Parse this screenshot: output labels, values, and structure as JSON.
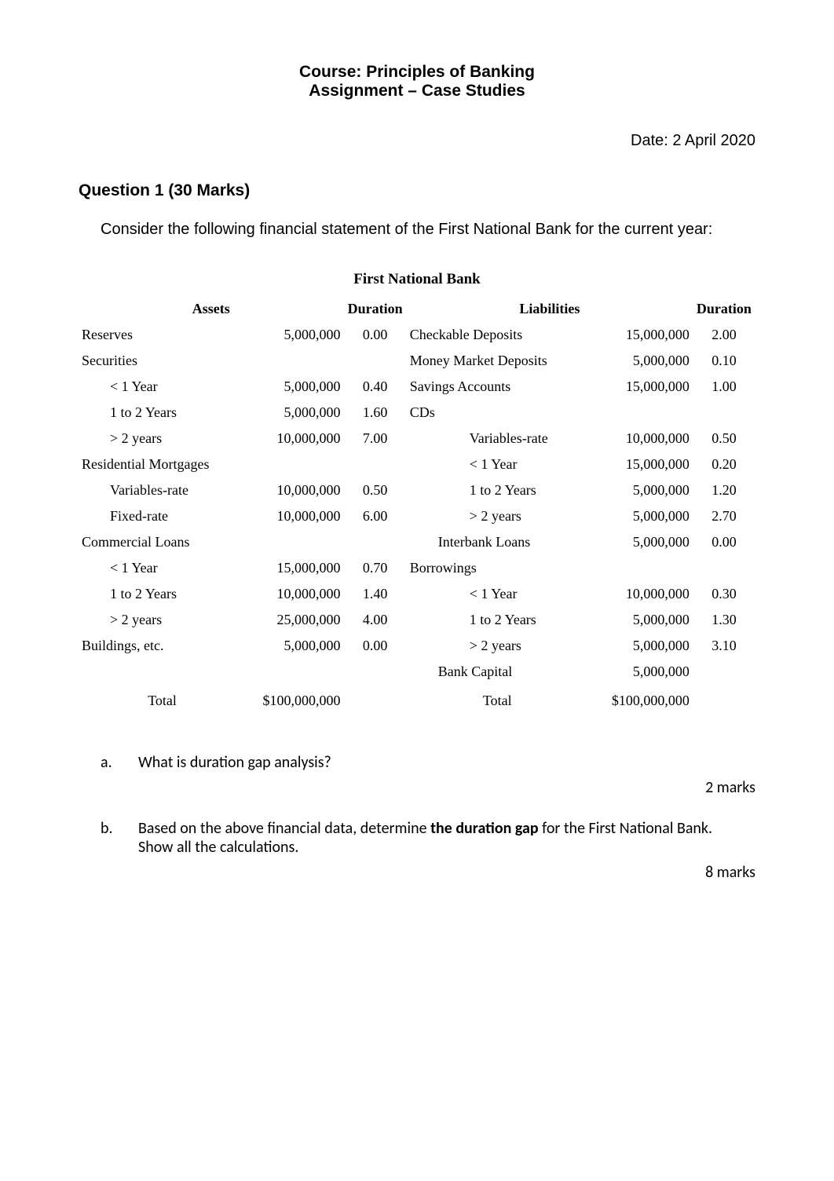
{
  "title": {
    "line1": "Course: Principles of Banking",
    "line2": "Assignment – Case Studies",
    "fontsize": 21,
    "font_family": "Arial",
    "font_weight": "bold"
  },
  "date_label": "Date: 2 April 2020",
  "question_heading": "Question 1 (30 Marks)",
  "intro_text": "Consider the following financial statement of the First National Bank for the current year:",
  "table": {
    "caption": "First National Bank",
    "header": {
      "assets_label": "Assets",
      "duration_label_left": "Duration",
      "liabilities_label": "Liabilities",
      "duration_label_right": "Duration"
    },
    "col_widths_pct": [
      24,
      14,
      9,
      26,
      15,
      8
    ],
    "fontsize": 18,
    "font_family": "Times New Roman",
    "rows": [
      {
        "asset_label": "Reserves",
        "asset_indent": 0,
        "asset_amount": "5,000,000",
        "asset_duration": "0.00",
        "liab_label": "Checkable Deposits",
        "liab_indent": 0,
        "liab_amount": "15,000,000",
        "liab_duration": "2.00"
      },
      {
        "asset_label": "Securities",
        "asset_indent": 0,
        "asset_amount": "",
        "asset_duration": "",
        "liab_label": "Money Market Deposits",
        "liab_indent": 0,
        "liab_amount": "5,000,000",
        "liab_duration": "0.10"
      },
      {
        "asset_label": "< 1 Year",
        "asset_indent": 1,
        "asset_amount": "5,000,000",
        "asset_duration": "0.40",
        "liab_label": "Savings Accounts",
        "liab_indent": 0,
        "liab_amount": "15,000,000",
        "liab_duration": "1.00"
      },
      {
        "asset_label": "1 to 2 Years",
        "asset_indent": 1,
        "asset_amount": "5,000,000",
        "asset_duration": "1.60",
        "liab_label": "CDs",
        "liab_indent": 0,
        "liab_amount": "",
        "liab_duration": ""
      },
      {
        "asset_label": "> 2 years",
        "asset_indent": 1,
        "asset_amount": "10,000,000",
        "asset_duration": "7.00",
        "liab_label": "Variables-rate",
        "liab_indent": 2,
        "liab_amount": "10,000,000",
        "liab_duration": "0.50"
      },
      {
        "asset_label": "Residential Mortgages",
        "asset_indent": 0,
        "asset_amount": "",
        "asset_duration": "",
        "liab_label": "< 1 Year",
        "liab_indent": 2,
        "liab_amount": "15,000,000",
        "liab_duration": "0.20"
      },
      {
        "asset_label": "Variables-rate",
        "asset_indent": 1,
        "asset_amount": "10,000,000",
        "asset_duration": "0.50",
        "liab_label": "1 to 2 Years",
        "liab_indent": 2,
        "liab_amount": "5,000,000",
        "liab_duration": "1.20"
      },
      {
        "asset_label": "Fixed-rate",
        "asset_indent": 1,
        "asset_amount": "10,000,000",
        "asset_duration": "6.00",
        "liab_label": "> 2 years",
        "liab_indent": 2,
        "liab_amount": "5,000,000",
        "liab_duration": "2.70"
      },
      {
        "asset_label": "Commercial Loans",
        "asset_indent": 0,
        "asset_amount": "",
        "asset_duration": "",
        "liab_label": "Interbank Loans",
        "liab_indent": 1,
        "liab_amount": "5,000,000",
        "liab_duration": "0.00"
      },
      {
        "asset_label": "< 1 Year",
        "asset_indent": 1,
        "asset_amount": "15,000,000",
        "asset_duration": "0.70",
        "liab_label": "Borrowings",
        "liab_indent": 0,
        "liab_amount": "",
        "liab_duration": ""
      },
      {
        "asset_label": "1 to 2 Years",
        "asset_indent": 1,
        "asset_amount": "10,000,000",
        "asset_duration": "1.40",
        "liab_label": "< 1 Year",
        "liab_indent": 2,
        "liab_amount": "10,000,000",
        "liab_duration": "0.30"
      },
      {
        "asset_label": "> 2 years",
        "asset_indent": 1,
        "asset_amount": "25,000,000",
        "asset_duration": "4.00",
        "liab_label": "1 to 2 Years",
        "liab_indent": 2,
        "liab_amount": "5,000,000",
        "liab_duration": "1.30"
      },
      {
        "asset_label": "Buildings, etc.",
        "asset_indent": 0,
        "asset_amount": "5,000,000",
        "asset_duration": "0.00",
        "liab_label": "> 2 years",
        "liab_indent": 2,
        "liab_amount": "5,000,000",
        "liab_duration": "3.10"
      },
      {
        "asset_label": "",
        "asset_indent": 0,
        "asset_amount": "",
        "asset_duration": "",
        "liab_label": "Bank Capital",
        "liab_indent": 1,
        "liab_amount": "5,000,000",
        "liab_duration": ""
      }
    ],
    "totals": {
      "asset_total_label": "Total",
      "asset_total_amount": "$100,000,000",
      "liab_total_label": "Total",
      "liab_total_amount": "$100,000,000"
    }
  },
  "sub_questions": {
    "font_family": "Calibri",
    "fontsize": 20,
    "a": {
      "letter": "a.",
      "text": "What is duration gap analysis?",
      "marks": "2 marks"
    },
    "b": {
      "letter": "b.",
      "text_plain": "Based on the above financial data, determine the duration gap for the First National Bank.",
      "text_prefix": "Based on the above financial data, determine ",
      "bold_span": "the duration gap",
      "text_suffix": " for the First National Bank.",
      "text_line2": "Show all the calculations.",
      "marks": "8 marks"
    }
  },
  "colors": {
    "background": "#ffffff",
    "text": "#000000"
  }
}
